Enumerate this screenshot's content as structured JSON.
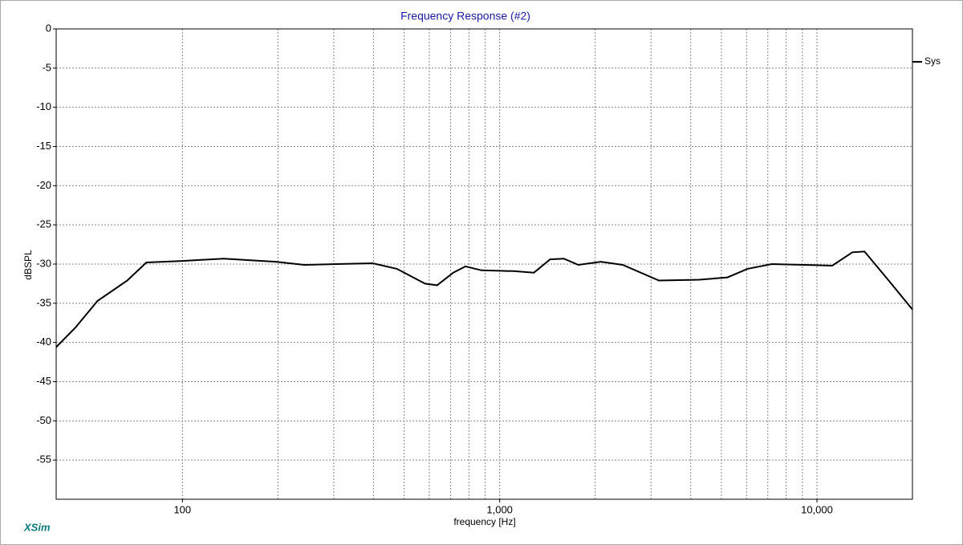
{
  "chart_data": {
    "type": "line",
    "title": "Frequency Response (#2)",
    "x_label": "frequency [Hz]",
    "y_label": "dBSPL",
    "footer": "XSim",
    "log_x": true,
    "grid": true,
    "xlim": [
      40,
      20000
    ],
    "ylim": [
      -60,
      0
    ],
    "xticks": [
      100,
      {
        "value": 1000,
        "label": "1,000"
      },
      {
        "value": 10000,
        "label": "10,000"
      }
    ],
    "xgrid": [
      200,
      300,
      400,
      500,
      600,
      700,
      800,
      900,
      2000,
      3000,
      4000,
      5000,
      6000,
      7000,
      8000,
      9000
    ],
    "yticks": [
      0,
      -5,
      -10,
      -15,
      -20,
      -25,
      -30,
      -35,
      -40,
      -45,
      -50,
      -55
    ],
    "x": [
      40,
      46,
      54,
      67,
      77,
      100,
      135,
      197,
      242,
      306,
      398,
      474,
      582,
      635,
      714,
      780,
      877,
      1107,
      1282,
      1442,
      1592,
      1770,
      2084,
      2443,
      3177,
      4256,
      5224,
      6042,
      7206,
      9100,
      11170,
      12940,
      14130,
      16830,
      20000
    ],
    "series": [
      {
        "name": "Sys",
        "color": "#000000",
        "values": [
          -40.6,
          -38.1,
          -34.7,
          -32.1,
          -29.8,
          -29.6,
          -29.3,
          -29.7,
          -30.1,
          -30.0,
          -29.9,
          -30.6,
          -32.5,
          -32.7,
          -31.1,
          -30.3,
          -30.8,
          -30.9,
          -31.1,
          -29.4,
          -29.3,
          -30.1,
          -29.7,
          -30.1,
          -32.1,
          -32.0,
          -31.7,
          -30.6,
          -30.0,
          -30.1,
          -30.2,
          -28.5,
          -28.4,
          -32.1,
          -35.8
        ]
      }
    ]
  }
}
